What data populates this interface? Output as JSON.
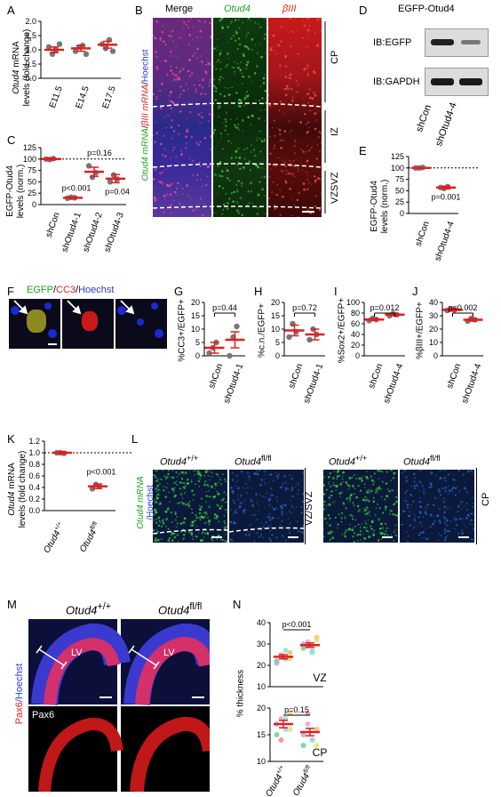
{
  "panels": {
    "A": {
      "letter": "A",
      "ylabel_gene": "Otud4",
      "ylabel_rest": " mRNA",
      "ylabel2": "levels (fold change)",
      "yticks": [
        "0.0",
        "0.5",
        "1.0",
        "1.5",
        "2.0"
      ],
      "cats": [
        "E11.5",
        "E14.5",
        "E17.5"
      ]
    },
    "B": {
      "letter": "B",
      "title_merge": "Merge",
      "title_otud4": "Otud4",
      "title_b3": "βIII",
      "side_otud4": "Otud4 mRNA",
      "side_b3": "βIII mRNA",
      "side_hoechst": "Hoechst",
      "zones": [
        "CP",
        "IZ",
        "VZSVZ"
      ]
    },
    "C": {
      "letter": "C",
      "ylabel": "EGFP-Otud4",
      "ylabel2": "levels (norm.)",
      "yticks": [
        "0",
        "25",
        "50",
        "75",
        "100",
        "125"
      ],
      "cats": [
        "shCon",
        "shOtud4-1",
        "shOtud4-2",
        "shOtud4-3"
      ],
      "p1": "p<0.001",
      "p2": "p=0.16",
      "p3": "p=0.04"
    },
    "D": {
      "letter": "D",
      "title": "EGFP-Otud4",
      "ib1": "IB:EGFP",
      "ib2": "IB:GAPDH",
      "cats": [
        "shCon",
        "shOtud4-4"
      ]
    },
    "E": {
      "letter": "E",
      "ylabel": "EGFP-Otud4",
      "ylabel2": "levels (norm.)",
      "yticks": [
        "0",
        "25",
        "50",
        "75",
        "100",
        "125"
      ],
      "cats": [
        "shCon",
        "shOtud4-4"
      ],
      "p": "p=0.001"
    },
    "F": {
      "letter": "F",
      "t1": "EGFP",
      "t2": "CC3",
      "t3": "Hoechst"
    },
    "G": {
      "letter": "G",
      "ylabel": "%CC3+/EGFP+",
      "yticks": [
        "0",
        "5",
        "10",
        "15",
        "20"
      ],
      "cats": [
        "shCon",
        "shOtud4-1"
      ],
      "p": "p=0.44"
    },
    "H": {
      "letter": "H",
      "ylabel": "%c.n./EGFP+",
      "yticks": [
        "0",
        "5",
        "10",
        "15",
        "20"
      ],
      "cats": [
        "shCon",
        "shOtud4-1"
      ],
      "p": "p=0.72"
    },
    "I": {
      "letter": "I",
      "ylabel": "%Sox2+/EGFP+",
      "yticks": [
        "0",
        "20",
        "40",
        "60",
        "80",
        "100"
      ],
      "cats": [
        "shCon",
        "shOtud4-4"
      ],
      "p": "p=0.012"
    },
    "J": {
      "letter": "J",
      "ylabel": "%βIII+/EGFP+",
      "yticks": [
        "0",
        "10",
        "20",
        "30",
        "40"
      ],
      "cats": [
        "shCon",
        "shOtud4-4"
      ],
      "p": "p=0.002"
    },
    "K": {
      "letter": "K",
      "ylabel_gene": "Otud4",
      "ylabel_rest": " mRNA",
      "ylabel2": "levels (fold change)",
      "yticks": [
        "0.0",
        "0.2",
        "0.4",
        "0.6",
        "0.8",
        "1.0",
        "1.2"
      ],
      "cat1": "Otud4",
      "cat1_sup": "+/+",
      "cat2": "Otud4",
      "cat2_sup": "fl/fl",
      "p": "p<0.001"
    },
    "L": {
      "letter": "L",
      "g1": "Otud4",
      "s1": "+/+",
      "g2": "Otud4",
      "s2": "fl/fl",
      "side1": "Otud4 mRNA",
      "side2": "/Hoechst",
      "zone1": "VZ/SVZ",
      "zone2": "CP"
    },
    "M": {
      "letter": "M",
      "g1": "Otud4",
      "s1": "+/+",
      "g2": "Otud4",
      "s2": "fl/fl",
      "lv": "LV",
      "side1": "Pax6",
      "side2": "/Hoechst",
      "pax": "Pax6"
    },
    "N": {
      "letter": "N",
      "ylabel": "% thickness",
      "vz_ticks": [
        "10",
        "20",
        "30",
        "40"
      ],
      "cp_ticks": [
        "10",
        "15",
        "20"
      ],
      "vz": "VZ",
      "cp": "CP",
      "p_vz": "p<0.001",
      "p_cp": "p=0.15",
      "cat1": "Otud4",
      "cat1_sup": "+/+",
      "cat2": "Otud4",
      "cat2_sup": "fl/fl"
    }
  },
  "chart_data": [
    {
      "type": "scatter",
      "panel": "A",
      "categories": [
        "E11.5",
        "E14.5",
        "E17.5"
      ],
      "means": [
        1.0,
        1.05,
        1.18
      ],
      "sem": [
        0.1,
        0.1,
        0.12
      ],
      "points": [
        [
          1.1,
          0.85,
          1.0,
          1.2
        ],
        [
          0.95,
          1.1,
          1.15,
          0.85
        ],
        [
          1.2,
          1.05,
          1.35,
          0.95
        ]
      ],
      "ylim": [
        0,
        2
      ]
    },
    {
      "type": "bar",
      "panel": "C",
      "categories": [
        "shCon",
        "shOtud4-1",
        "shOtud4-2",
        "shOtud4-3"
      ],
      "means": [
        100,
        15,
        72,
        57
      ],
      "sem": [
        2,
        2,
        10,
        9
      ],
      "points": [
        [
          100,
          99,
          101
        ],
        [
          14,
          16,
          15
        ],
        [
          85,
          60,
          70
        ],
        [
          50,
          65,
          56
        ]
      ],
      "ylim": [
        0,
        125
      ],
      "reference": 100
    },
    {
      "type": "scatter",
      "panel": "E",
      "categories": [
        "shCon",
        "shOtud4-4"
      ],
      "means": [
        100,
        57
      ],
      "sem": [
        1,
        3
      ],
      "points": [
        [
          100,
          100,
          101
        ],
        [
          57,
          55,
          59
        ]
      ],
      "ylim": [
        0,
        125
      ],
      "reference": 100
    },
    {
      "type": "scatter",
      "panel": "G",
      "categories": [
        "shCon",
        "shOtud4-1"
      ],
      "means": [
        3,
        6
      ],
      "sem": [
        2,
        3
      ],
      "points": [
        [
          1,
          3,
          5
        ],
        [
          0,
          7,
          11
        ]
      ],
      "ylim": [
        0,
        20
      ]
    },
    {
      "type": "scatter",
      "panel": "H",
      "categories": [
        "shCon",
        "shOtud4-1"
      ],
      "means": [
        9.5,
        8
      ],
      "sem": [
        2,
        2
      ],
      "points": [
        [
          7,
          12,
          9
        ],
        [
          6,
          10,
          8
        ]
      ],
      "ylim": [
        0,
        20
      ]
    },
    {
      "type": "scatter",
      "panel": "I",
      "categories": [
        "shCon",
        "shOtud4-4"
      ],
      "means": [
        68,
        77
      ],
      "sem": [
        2,
        2
      ],
      "points": [
        [
          66,
          70,
          68
        ],
        [
          75,
          79,
          77
        ]
      ],
      "ylim": [
        0,
        100
      ]
    },
    {
      "type": "scatter",
      "panel": "J",
      "categories": [
        "shCon",
        "shOtud4-4"
      ],
      "means": [
        34.5,
        27
      ],
      "sem": [
        1,
        1
      ],
      "points": [
        [
          34,
          35,
          34.5
        ],
        [
          26,
          28,
          27
        ]
      ],
      "ylim": [
        0,
        40
      ]
    },
    {
      "type": "scatter",
      "panel": "K",
      "categories": [
        "Otud4+/+",
        "Otud4fl/fl"
      ],
      "means": [
        1.0,
        0.42
      ],
      "sem": [
        0.02,
        0.04
      ],
      "points": [
        [
          1.0,
          1.0,
          0.99
        ],
        [
          0.38,
          0.45,
          0.42
        ]
      ],
      "ylim": [
        0,
        1.2
      ],
      "reference": 1.0
    },
    {
      "type": "scatter",
      "panel": "N-VZ",
      "categories": [
        "Otud4+/+",
        "Otud4fl/fl"
      ],
      "means": [
        24,
        29.5
      ],
      "sem": [
        1,
        1
      ],
      "points": [
        [
          22,
          25,
          23,
          26,
          21,
          24,
          27,
          23
        ],
        [
          28,
          31,
          27,
          33,
          30,
          29,
          26,
          32
        ]
      ],
      "ylim": [
        10,
        40
      ]
    },
    {
      "type": "scatter",
      "panel": "N-CP",
      "categories": [
        "Otud4+/+",
        "Otud4fl/fl"
      ],
      "means": [
        17,
        15.5
      ],
      "sem": [
        0.7,
        0.7
      ],
      "points": [
        [
          15,
          18,
          16,
          19,
          17,
          14,
          18,
          16
        ],
        [
          13,
          17,
          14,
          16,
          15,
          19,
          14,
          13
        ]
      ],
      "ylim": [
        10,
        20
      ]
    }
  ]
}
